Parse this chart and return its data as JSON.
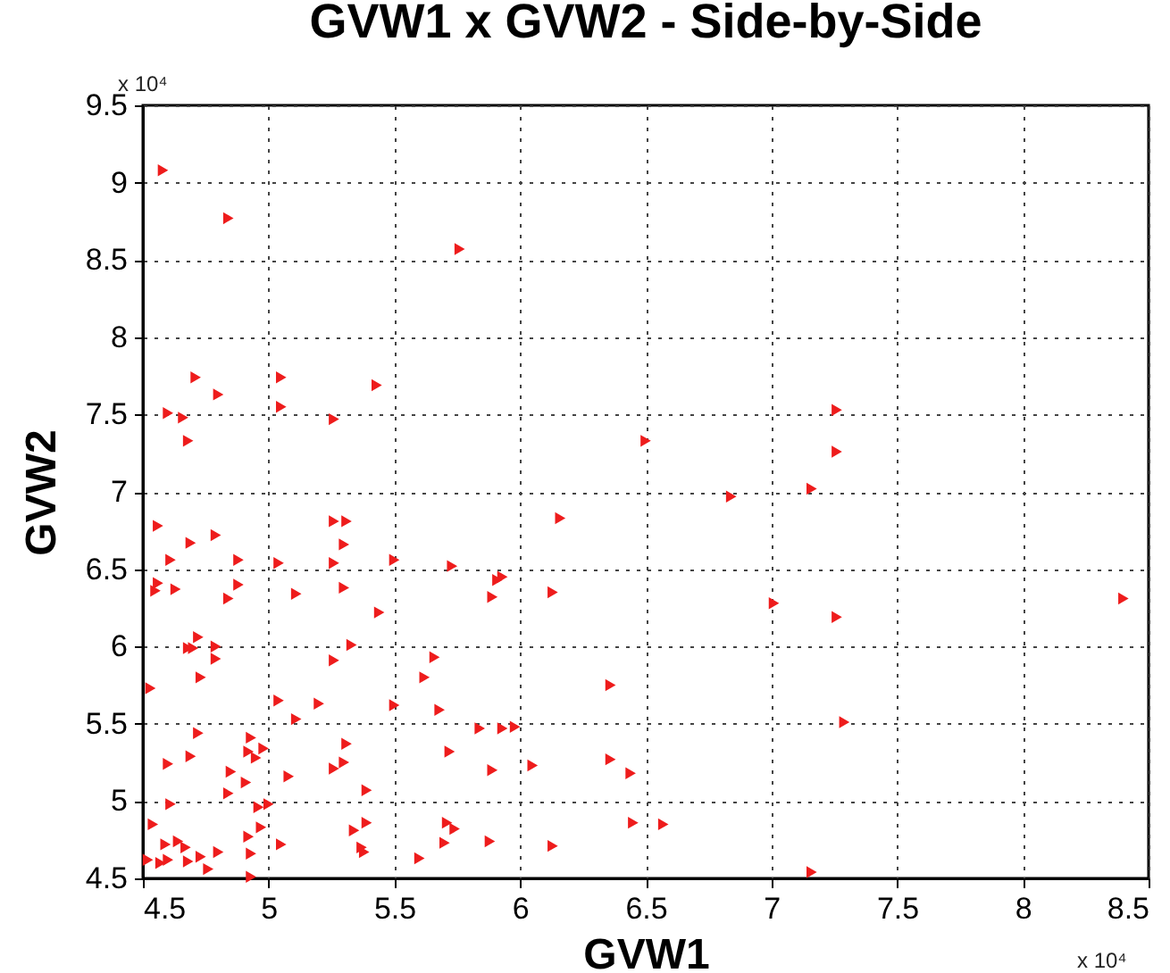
{
  "chart_data": {
    "type": "scatter",
    "title": "GVW1 x GVW2 - Side-by-Side",
    "xlabel": "GVW1",
    "ylabel": "GVW2",
    "annotations": [
      "x 10⁴",
      "x 10⁴"
    ],
    "xlim": [
      4.5,
      8.5
    ],
    "xticks": [
      4.5,
      5,
      5.5,
      6,
      6.5,
      7,
      7.5,
      8,
      8.5
    ],
    "ylim": [
      4.5,
      9.5
    ],
    "yticks": [
      4.5,
      5,
      5.5,
      6,
      6.5,
      7,
      7.5,
      8,
      8.5,
      9,
      9.5
    ],
    "grid": true,
    "marker": "triangle",
    "series": [
      {
        "color": "#ee1c1c",
        "x": [
          4.58,
          4.84,
          4.71,
          4.8,
          4.6,
          4.66,
          4.68,
          5.05,
          5.05,
          5.26,
          5.43,
          5.76,
          4.56,
          4.69,
          4.79,
          4.61,
          4.88,
          4.56,
          4.55,
          4.63,
          4.88,
          4.84,
          5.04,
          5.11,
          5.26,
          5.31,
          5.26,
          5.3,
          5.3,
          5.44,
          5.5,
          5.73,
          4.72,
          4.68,
          4.7,
          4.79,
          4.79,
          4.73,
          4.53,
          5.33,
          5.26,
          5.66,
          5.62,
          5.68,
          5.5,
          5.2,
          5.04,
          5.11,
          4.72,
          4.6,
          4.69,
          4.93,
          4.92,
          4.95,
          4.98,
          4.85,
          4.91,
          4.84,
          5.31,
          5.26,
          5.3,
          5.08,
          5.39,
          5.72,
          4.61,
          4.96,
          5.0,
          4.54,
          4.59,
          4.64,
          4.67,
          4.73,
          4.68,
          4.52,
          4.57,
          4.6,
          4.8,
          4.76,
          4.92,
          4.93,
          4.97,
          4.93,
          5.05,
          5.34,
          5.39,
          5.37,
          5.38,
          5.6,
          5.71,
          5.74,
          5.7,
          6.5,
          6.84,
          7.16,
          6.16,
          5.91,
          5.93,
          5.89,
          6.13,
          7.01,
          6.36,
          5.84,
          5.93,
          5.98,
          5.89,
          6.05,
          6.36,
          6.44,
          5.88,
          6.13,
          6.45,
          6.57,
          7.16,
          7.26,
          7.26,
          8.4,
          7.26,
          7.29
        ],
        "values": [
          9.08,
          8.77,
          7.74,
          7.63,
          7.51,
          7.48,
          7.33,
          7.74,
          7.55,
          7.47,
          7.69,
          8.57,
          6.78,
          6.67,
          6.72,
          6.56,
          6.56,
          6.41,
          6.36,
          6.37,
          6.4,
          6.31,
          6.54,
          6.34,
          6.81,
          6.81,
          6.54,
          6.66,
          6.38,
          6.22,
          6.56,
          6.52,
          6.06,
          5.99,
          5.99,
          6.0,
          5.92,
          5.8,
          5.73,
          6.01,
          5.91,
          5.93,
          5.8,
          5.59,
          5.62,
          5.63,
          5.65,
          5.53,
          5.44,
          5.24,
          5.29,
          5.41,
          5.32,
          5.28,
          5.34,
          5.19,
          5.12,
          5.05,
          5.37,
          5.21,
          5.25,
          5.16,
          5.07,
          5.32,
          4.98,
          4.96,
          4.98,
          4.85,
          4.72,
          4.74,
          4.7,
          4.64,
          4.61,
          4.62,
          4.6,
          4.62,
          4.67,
          4.56,
          4.77,
          4.66,
          4.83,
          4.51,
          4.72,
          4.81,
          4.86,
          4.7,
          4.67,
          4.63,
          4.86,
          4.82,
          4.73,
          7.33,
          6.97,
          7.02,
          6.83,
          6.43,
          6.45,
          6.32,
          6.35,
          6.28,
          5.75,
          5.47,
          5.47,
          5.48,
          5.2,
          5.23,
          5.27,
          5.18,
          4.74,
          4.71,
          4.86,
          4.85,
          4.54,
          7.53,
          7.26,
          6.31,
          6.19,
          5.51
        ]
      }
    ]
  }
}
